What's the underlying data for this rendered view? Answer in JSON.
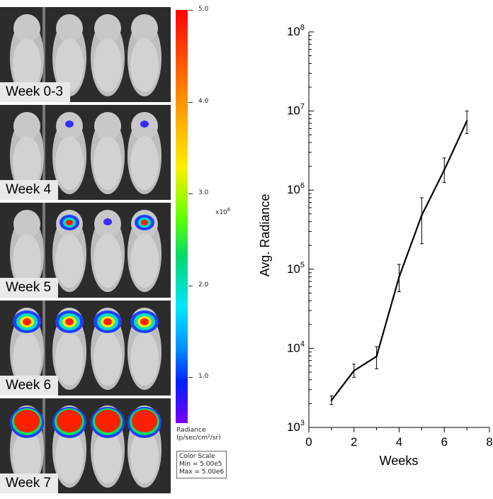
{
  "panels": [
    {
      "label": "Week 0-3"
    },
    {
      "label": "Week 4"
    },
    {
      "label": "Week 5"
    },
    {
      "label": "Week 6"
    },
    {
      "label": "Week 7"
    }
  ],
  "colorbar": {
    "ticks": [
      "5.0",
      "4.0",
      "3.0",
      "2.0",
      "1.0"
    ],
    "tick_values": [
      5.0,
      4.0,
      3.0,
      2.0,
      1.0
    ],
    "multiplier_base": "x10",
    "multiplier_exp": "6",
    "caption_line1": "Radiance",
    "caption_line2": "(p/sec/cm²/sr)",
    "scale_title": "Color Scale",
    "scale_min": "Min = 5.00e5",
    "scale_max": "Max = 5.00e6"
  },
  "chart_data": {
    "type": "line",
    "xlabel": "Weeks",
    "ylabel": "Avg. Radiance",
    "xlim": [
      0,
      8
    ],
    "ylim": [
      1000,
      100000000
    ],
    "yscale": "log",
    "x_ticks": [
      "0",
      "2",
      "4",
      "6",
      "8"
    ],
    "y_ticks": [
      {
        "base": "10",
        "exp": "3"
      },
      {
        "base": "10",
        "exp": "4"
      },
      {
        "base": "10",
        "exp": "5"
      },
      {
        "base": "10",
        "exp": "6"
      },
      {
        "base": "10",
        "exp": "7"
      },
      {
        "base": "10",
        "exp": "8"
      }
    ],
    "series": [
      {
        "name": "Avg. Radiance",
        "x": [
          1,
          2,
          3,
          4,
          5,
          6,
          7
        ],
        "y": [
          2200,
          5200,
          7900,
          80000,
          480000,
          1800000,
          7500000
        ],
        "err_low": [
          1950,
          4300,
          5500,
          52000,
          210000,
          1250000,
          5200000
        ],
        "err_high": [
          2500,
          6300,
          10500,
          115000,
          800000,
          2550000,
          10000000
        ]
      }
    ]
  }
}
